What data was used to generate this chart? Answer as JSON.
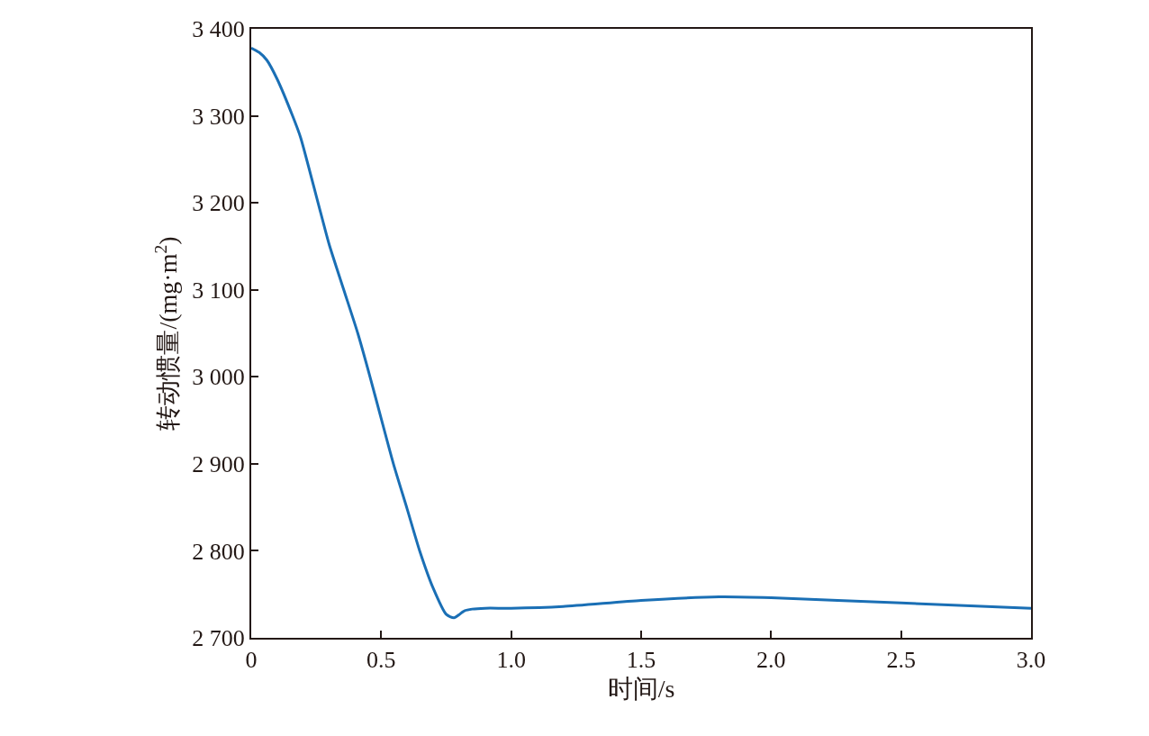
{
  "chart_data": {
    "type": "line",
    "xlabel": "时间/s",
    "ylabel": "转动惯量/(mg·m$^{2}$)",
    "xlim": [
      0,
      3.0
    ],
    "ylim": [
      2700,
      3400
    ],
    "xticks": [
      0,
      0.5,
      {
        "value": 1.0,
        "label": "1.0"
      },
      1.5,
      {
        "value": 2.0,
        "label": "2.0"
      },
      2.5,
      {
        "value": 3.0,
        "label": "3.0"
      }
    ],
    "yticks": [
      {
        "value": 2700,
        "label": "2 700"
      },
      {
        "value": 2800,
        "label": "2 800"
      },
      {
        "value": 2900,
        "label": "2 900"
      },
      {
        "value": 3000,
        "label": "3 000"
      },
      {
        "value": 3100,
        "label": "3 100"
      },
      {
        "value": 3200,
        "label": "3 200"
      },
      {
        "value": 3300,
        "label": "3 300"
      },
      {
        "value": 3400,
        "label": "3 400"
      }
    ],
    "marker": "none",
    "line_style": "solid",
    "series": [
      {
        "color": "#1a6fb5",
        "x": [
          0,
          0.03,
          0.06,
          0.1,
          0.159,
          0.19,
          0.257,
          0.3,
          0.356,
          0.41,
          0.457,
          0.5,
          0.547,
          0.6,
          0.648,
          0.7,
          0.75,
          0.78,
          0.82,
          0.85,
          0.9,
          1.0,
          1.2,
          1.5,
          1.8,
          2.0,
          2.5,
          3.0
        ],
        "values": [
          3378,
          3373,
          3364,
          3342,
          3300,
          3275,
          3200,
          3152,
          3100,
          3050,
          3000,
          2952,
          2900,
          2848,
          2800,
          2757,
          2727,
          2723,
          2731,
          2733,
          2734,
          2734,
          2736,
          2743,
          2747,
          2746,
          2740,
          2734
        ]
      }
    ]
  }
}
